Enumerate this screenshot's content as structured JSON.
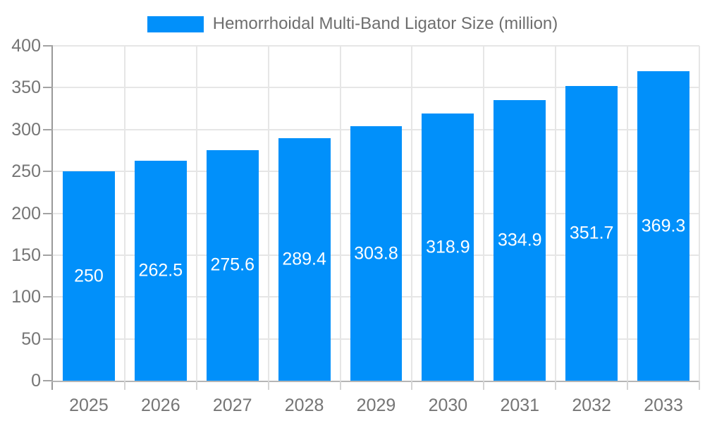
{
  "chart_data": {
    "type": "bar",
    "title": "",
    "categories": [
      "2025",
      "2026",
      "2027",
      "2028",
      "2029",
      "2030",
      "2031",
      "2032",
      "2033"
    ],
    "series": [
      {
        "name": "Hemorrhoidal Multi-Band Ligator Size (million)",
        "values": [
          250,
          262.5,
          275.6,
          289.4,
          303.8,
          318.9,
          334.9,
          351.7,
          369.3
        ]
      }
    ],
    "value_labels": [
      "250",
      "262.5",
      "275.6",
      "289.4",
      "303.8",
      "318.9",
      "334.9",
      "351.7",
      "369.3"
    ],
    "xlabel": "",
    "ylabel": "",
    "ylim": [
      0,
      400
    ],
    "yticks": [
      0,
      50,
      100,
      150,
      200,
      250,
      300,
      350,
      400
    ],
    "grid": "both",
    "legend_position": "top",
    "colors": {
      "bar": "#0190fa",
      "bar_value_text": "#ffffff",
      "axis_text": "#757575",
      "legend_text": "#6e6e6e",
      "gridline": "#e6e6e6",
      "y_axis_line": "#999999",
      "x_axis_line": "#b5b5b5",
      "y_tick": "#a3a3a3",
      "x_tick": "#d4d4d4"
    }
  }
}
